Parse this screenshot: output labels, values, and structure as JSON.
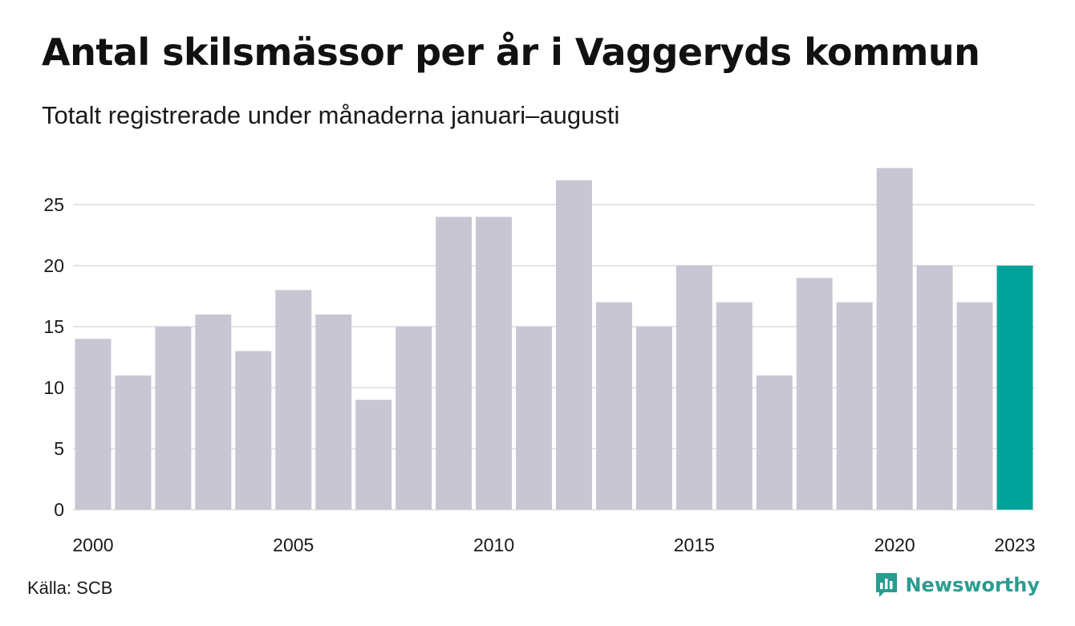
{
  "title": "Antal skilsmässor per år i Vaggeryds kommun",
  "subtitle": "Totalt registrerade under månaderna januari–augusti",
  "source": "Källa: SCB",
  "brand": {
    "name": "Newsworthy",
    "icon": "newsworthy-logo-icon",
    "color": "#2b9c90"
  },
  "colors": {
    "bar": "#c8c6d3",
    "highlight": "#00a39a",
    "grid": "#e4e4e8"
  },
  "chart_data": {
    "type": "bar",
    "categories": [
      "2000",
      "2001",
      "2002",
      "2003",
      "2004",
      "2005",
      "2006",
      "2007",
      "2008",
      "2009",
      "2010",
      "2011",
      "2012",
      "2013",
      "2014",
      "2015",
      "2016",
      "2017",
      "2018",
      "2019",
      "2020",
      "2021",
      "2022",
      "2023"
    ],
    "values": [
      14,
      11,
      15,
      16,
      13,
      18,
      16,
      9,
      15,
      24,
      24,
      15,
      27,
      17,
      15,
      20,
      17,
      11,
      19,
      17,
      28,
      20,
      17,
      20
    ],
    "highlight": "2023",
    "x_tick_labels": [
      "2000",
      "2005",
      "2010",
      "2015",
      "2020",
      "2023"
    ],
    "y_ticks": [
      0,
      5,
      10,
      15,
      20,
      25
    ],
    "ylim": [
      0,
      28
    ],
    "grid": true,
    "title": "Antal skilsmässor per år i Vaggeryds kommun",
    "xlabel": "",
    "ylabel": ""
  }
}
